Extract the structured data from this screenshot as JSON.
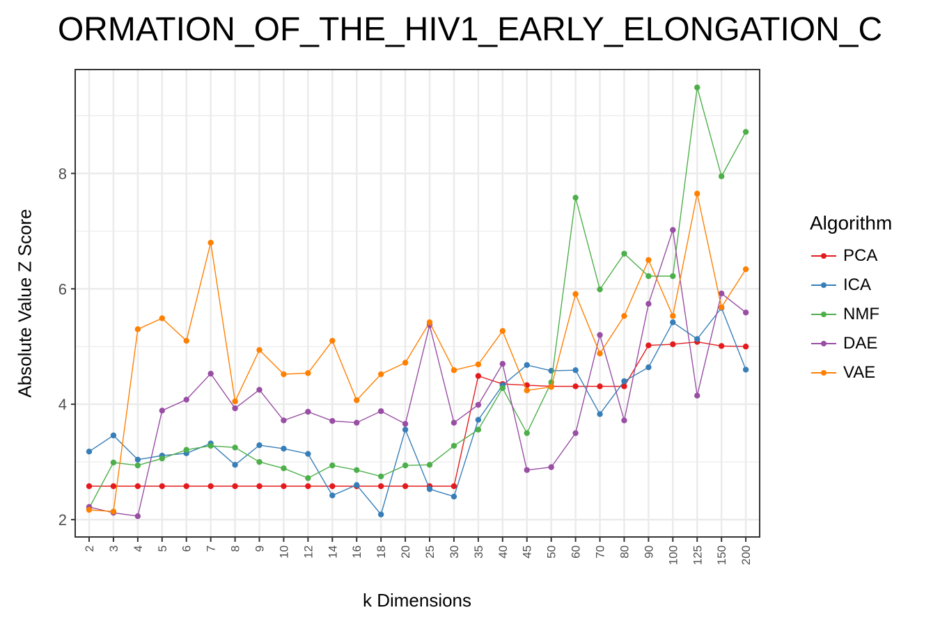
{
  "chart_data": {
    "type": "line",
    "title": "ORMATION_OF_THE_HIV1_EARLY_ELONGATION_C",
    "xlabel": "k Dimensions",
    "ylabel": "Absolute Value Z Score",
    "legend_title": "Algorithm",
    "legend_position": "right",
    "grid": true,
    "ylim": [
      1.7,
      9.8
    ],
    "yticks": [
      2,
      4,
      6,
      8
    ],
    "categories": [
      "2",
      "3",
      "4",
      "5",
      "6",
      "7",
      "8",
      "9",
      "10",
      "12",
      "14",
      "16",
      "18",
      "20",
      "25",
      "30",
      "35",
      "40",
      "45",
      "50",
      "60",
      "70",
      "80",
      "90",
      "100",
      "125",
      "150",
      "200"
    ],
    "series": [
      {
        "name": "PCA",
        "color": "#E41A1C",
        "values": [
          2.58,
          2.58,
          2.58,
          2.58,
          2.58,
          2.58,
          2.58,
          2.58,
          2.58,
          2.58,
          2.58,
          2.58,
          2.58,
          2.58,
          2.58,
          2.58,
          4.49,
          4.35,
          4.33,
          4.31,
          4.31,
          4.31,
          4.31,
          5.02,
          5.04,
          5.08,
          5.01,
          5.0
        ]
      },
      {
        "name": "ICA",
        "color": "#377EB8",
        "values": [
          3.18,
          3.46,
          3.04,
          3.11,
          3.15,
          3.32,
          2.95,
          3.29,
          3.23,
          3.14,
          2.42,
          2.6,
          2.09,
          3.56,
          2.53,
          2.4,
          3.73,
          4.33,
          4.68,
          4.58,
          4.59,
          3.83,
          4.4,
          4.64,
          5.42,
          5.13,
          5.67,
          4.6
        ]
      },
      {
        "name": "NMF",
        "color": "#4DAF4A",
        "values": [
          2.2,
          2.99,
          2.94,
          3.06,
          3.21,
          3.28,
          3.25,
          3.0,
          2.89,
          2.72,
          2.94,
          2.86,
          2.75,
          2.94,
          2.95,
          3.28,
          3.56,
          4.28,
          3.5,
          4.38,
          7.58,
          5.99,
          6.61,
          6.22,
          6.22,
          9.49,
          7.95,
          8.72
        ]
      },
      {
        "name": "DAE",
        "color": "#984EA3",
        "values": [
          2.22,
          2.12,
          2.06,
          3.89,
          4.08,
          4.53,
          3.93,
          4.25,
          3.72,
          3.87,
          3.71,
          3.68,
          3.88,
          3.66,
          5.37,
          3.68,
          3.99,
          4.7,
          2.86,
          2.91,
          3.5,
          5.2,
          3.72,
          5.74,
          7.02,
          4.15,
          5.92,
          5.59
        ]
      },
      {
        "name": "VAE",
        "color": "#FF7F00",
        "values": [
          2.17,
          2.14,
          5.3,
          5.49,
          5.1,
          6.8,
          4.05,
          4.94,
          4.52,
          4.54,
          5.1,
          4.07,
          4.52,
          4.72,
          5.42,
          4.59,
          4.69,
          5.27,
          4.24,
          4.3,
          5.91,
          4.88,
          5.53,
          6.5,
          5.53,
          7.65,
          5.68,
          6.34
        ]
      }
    ]
  }
}
